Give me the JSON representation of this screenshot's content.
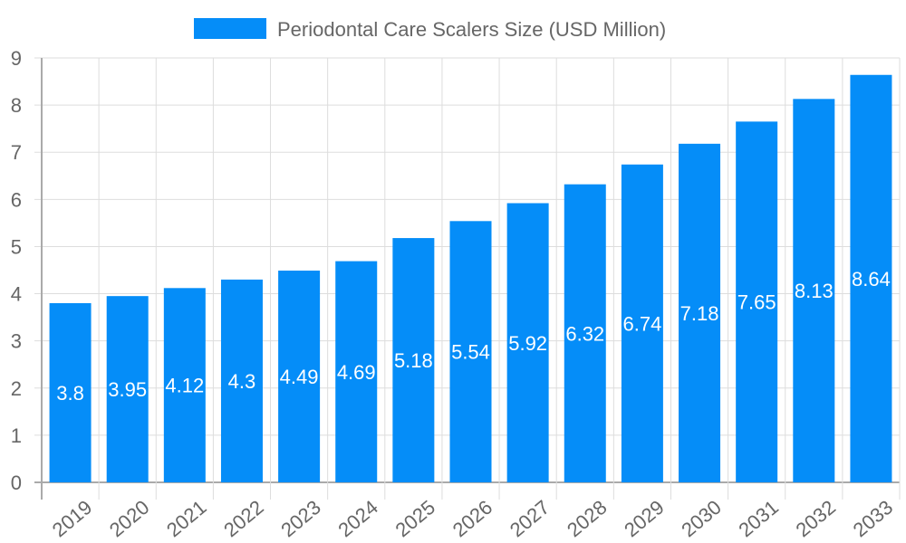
{
  "chart_data": {
    "type": "bar",
    "title": "",
    "xlabel": "",
    "ylabel": "",
    "categories": [
      "2019",
      "2020",
      "2021",
      "2022",
      "2023",
      "2024",
      "2025",
      "2026",
      "2027",
      "2028",
      "2029",
      "2030",
      "2031",
      "2032",
      "2033"
    ],
    "series": [
      {
        "name": "Periodontal Care Scalers Size (USD Million)",
        "values": [
          3.8,
          3.95,
          4.12,
          4.3,
          4.49,
          4.69,
          5.18,
          5.54,
          5.92,
          6.32,
          6.74,
          7.18,
          7.65,
          8.13,
          8.64
        ],
        "color": "#058DF8"
      }
    ],
    "ylim": [
      0,
      9
    ],
    "yticks": [
      0,
      1,
      2,
      3,
      4,
      5,
      6,
      7,
      8,
      9
    ],
    "grid": true,
    "legend": "top-center",
    "data_labels": true
  }
}
